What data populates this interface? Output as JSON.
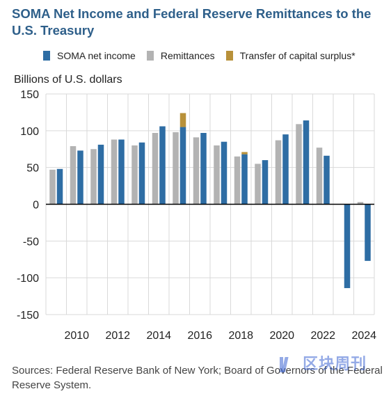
{
  "title": "SOMA Net Income and Federal Reserve Remittances to the U.S. Treasury",
  "legend": {
    "items": [
      {
        "label": "SOMA net income",
        "color": "#2e6da4"
      },
      {
        "label": "Remittances",
        "color": "#b3b3b3"
      },
      {
        "label": "Transfer of capital surplus*",
        "color": "#b8913a"
      }
    ]
  },
  "ylabel_text": "Billions of U.S. dollars",
  "source": "Sources: Federal Reserve Bank of New York; Board of Governors of the Federal Reserve System.",
  "watermark": "区块周刊",
  "chart_data": {
    "type": "bar",
    "title": "SOMA Net Income and Federal Reserve Remittances to the U.S. Treasury",
    "ylabel": "Billions of U.S. dollars",
    "ylim": [
      -150,
      150
    ],
    "yticks": [
      150,
      100,
      50,
      0,
      -50,
      -100,
      -150
    ],
    "grid": true,
    "legend_position": "top",
    "categories": [
      "2009",
      "2010",
      "2011",
      "2012",
      "2013",
      "2014",
      "2015",
      "2016",
      "2017",
      "2018",
      "2019",
      "2020",
      "2021",
      "2022",
      "2023",
      "2024"
    ],
    "xtick_labels": [
      "2010",
      "2012",
      "2014",
      "2016",
      "2018",
      "2020",
      "2022",
      "2024"
    ],
    "series": [
      {
        "name": "Remittances",
        "color": "#b3b3b3",
        "values": [
          47,
          79,
          75,
          88,
          80,
          97,
          98,
          91,
          80,
          65,
          55,
          87,
          109,
          77,
          0,
          3
        ]
      },
      {
        "name": "Transfer of capital surplus*",
        "color": "#b8913a",
        "values": [
          0,
          0,
          0,
          0,
          0,
          0,
          19,
          0,
          0,
          3,
          0,
          0,
          0,
          0,
          0,
          0
        ]
      },
      {
        "name": "SOMA net income",
        "color": "#2e6da4",
        "values": [
          48,
          73,
          81,
          88,
          84,
          106,
          105,
          97,
          85,
          68,
          60,
          95,
          114,
          66,
          -114,
          -77
        ]
      }
    ]
  }
}
